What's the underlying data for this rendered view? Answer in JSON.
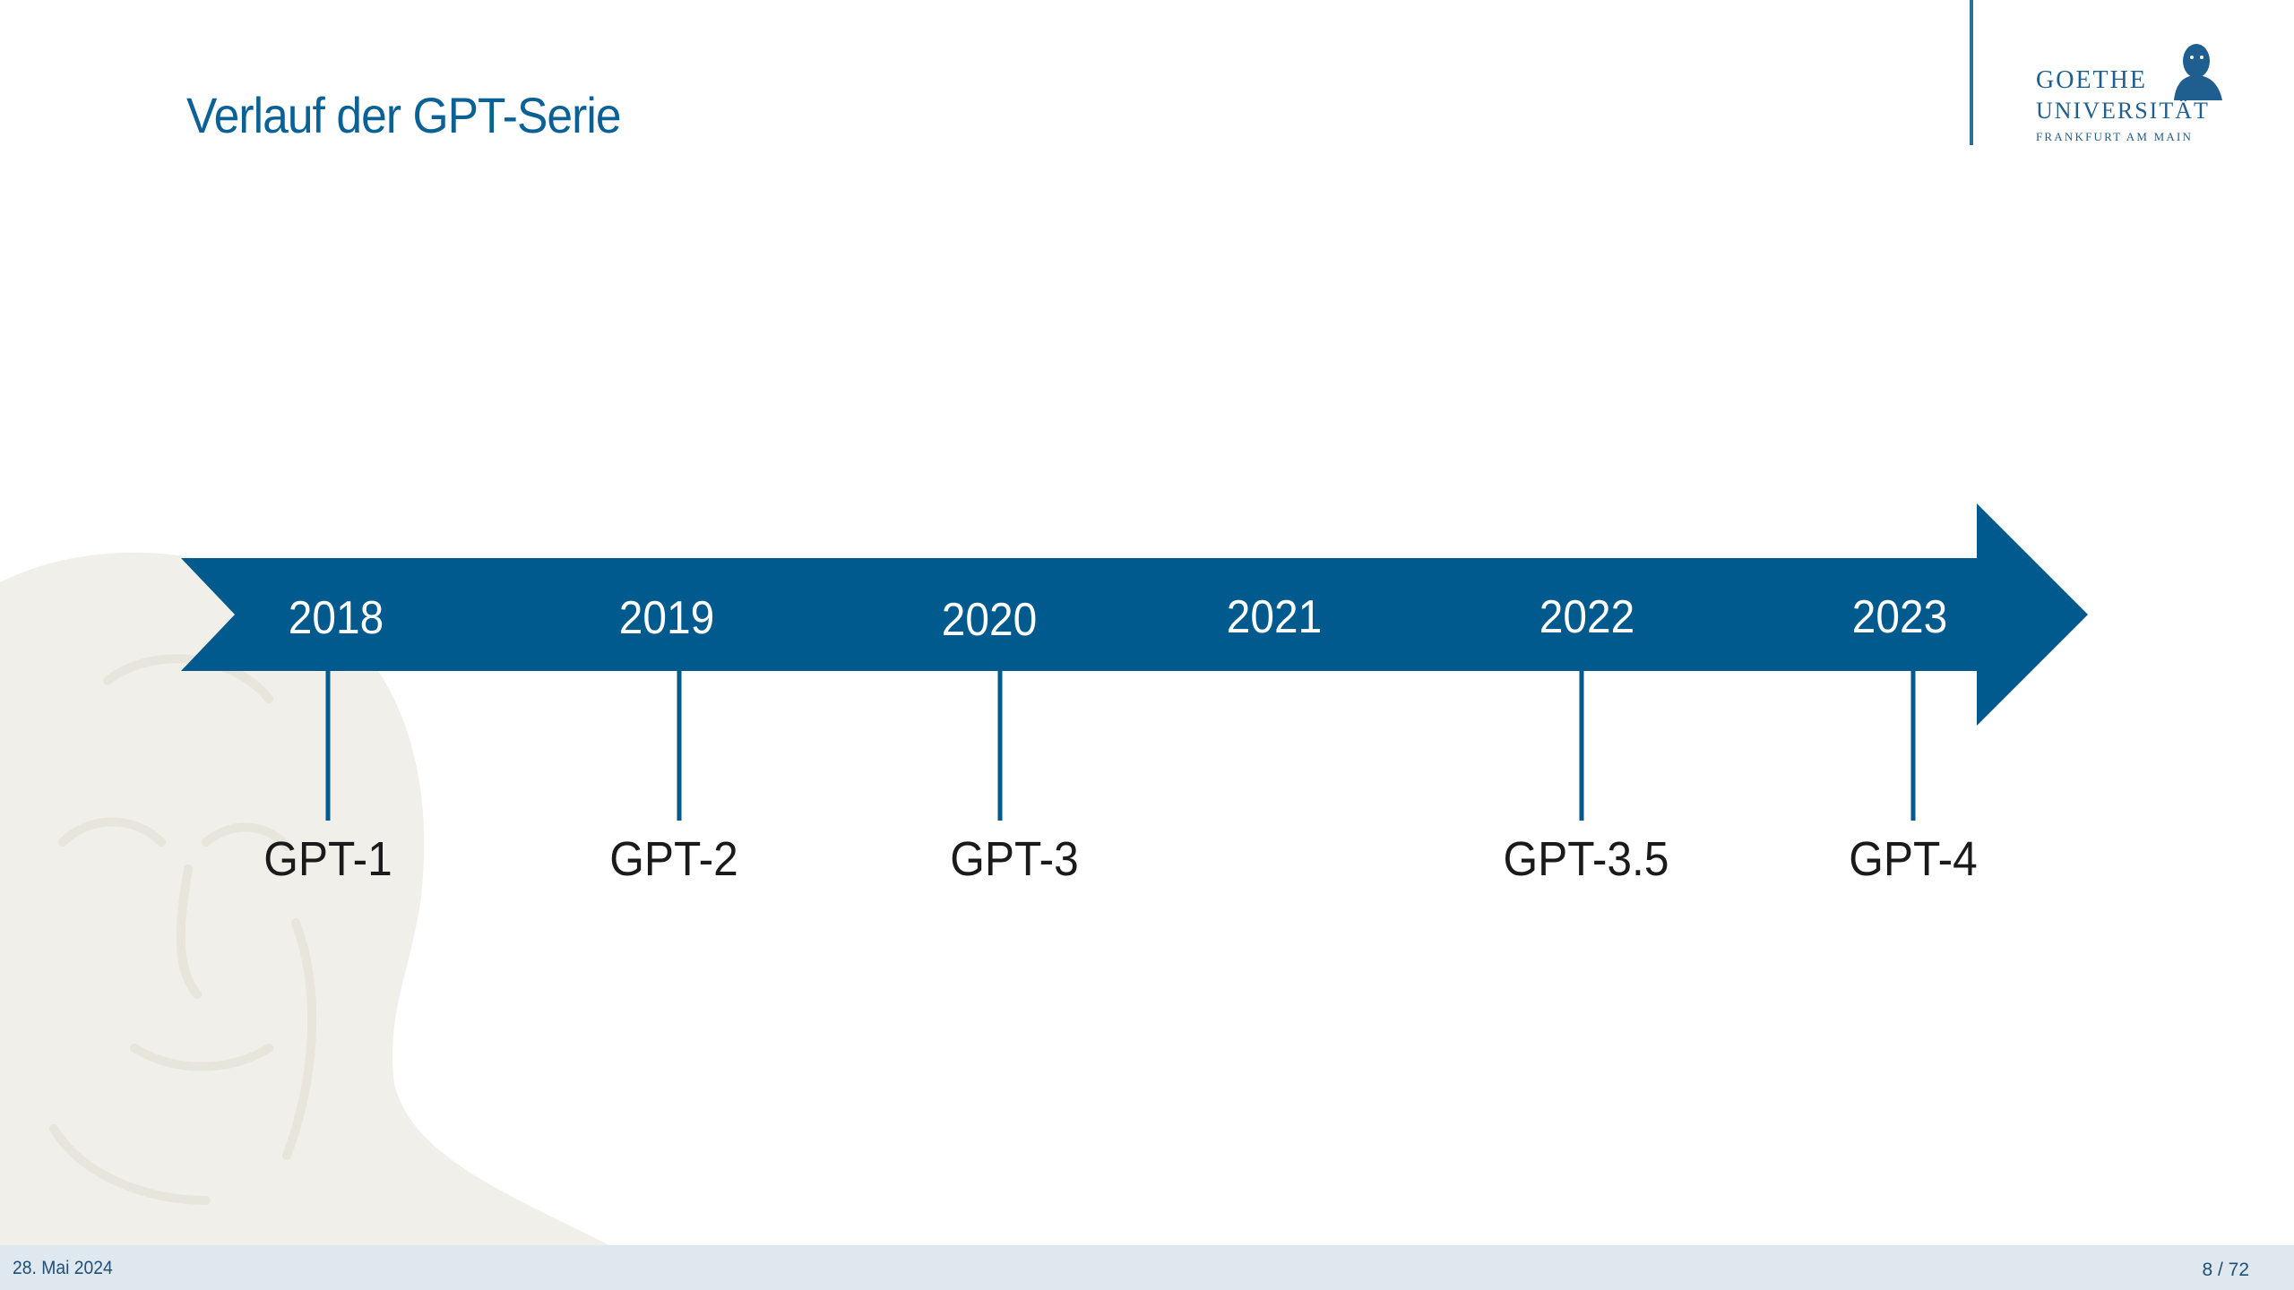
{
  "slide": {
    "title": "Verlauf der GPT-Serie",
    "date": "28. Mai 2024",
    "page": "8 / 72"
  },
  "logo": {
    "line1": "GOETHE",
    "line2": "UNIVERSITÄT",
    "line3": "FRANKFURT AM MAIN"
  },
  "timeline": {
    "years": [
      "2018",
      "2019",
      "2020",
      "2021",
      "2022",
      "2023"
    ],
    "models": [
      {
        "label": "GPT-1",
        "year": "2018"
      },
      {
        "label": "GPT-2",
        "year": "2019"
      },
      {
        "label": "GPT-3",
        "year": "2020"
      },
      {
        "label": "GPT-3.5",
        "year": "2022"
      },
      {
        "label": "GPT-4",
        "year": "2023"
      }
    ]
  },
  "colors": {
    "arrow": "#005a8e",
    "title": "#0a6196",
    "footer_bg": "#dfe8ef",
    "text": "#1a1a1a"
  }
}
